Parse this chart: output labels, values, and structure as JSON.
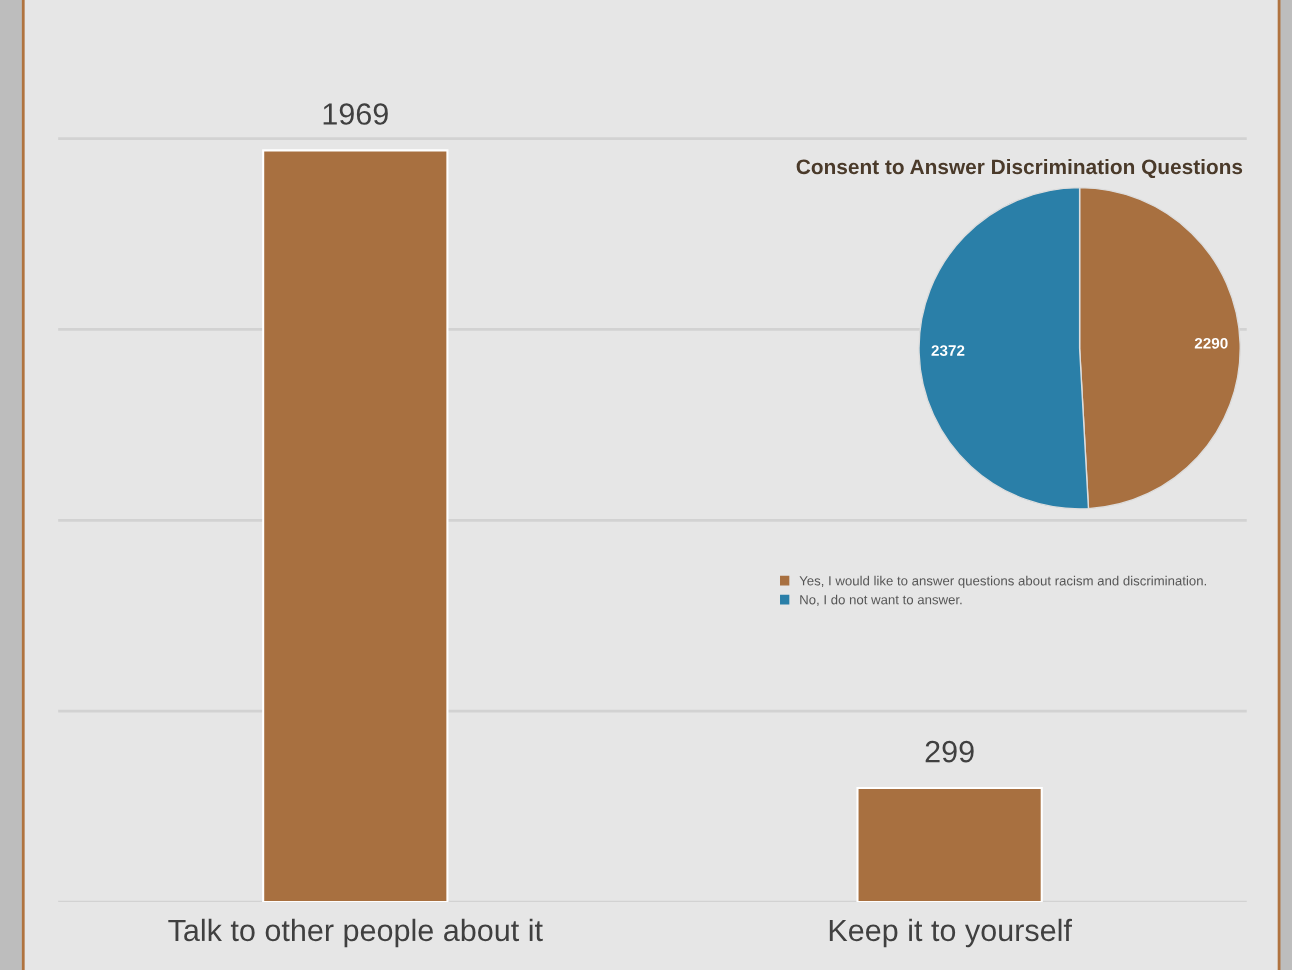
{
  "chart_data": [
    {
      "type": "bar",
      "categories": [
        "Talk to other people about it",
        "Keep it to yourself"
      ],
      "values": [
        1969,
        299
      ],
      "color": "#a87040",
      "data_labels": true,
      "grid": "y",
      "tick_labels": "x"
    },
    {
      "type": "pie",
      "title": "Consent to Answer Discrimination Questions",
      "categories": [
        "Yes, I would like to answer questions about racism and discrimination.",
        "No, I do not want to answer."
      ],
      "values": [
        2290,
        2372
      ],
      "colors": [
        "#a87040",
        "#2a7fa8"
      ],
      "data_labels": true,
      "legend": "bottom"
    }
  ]
}
